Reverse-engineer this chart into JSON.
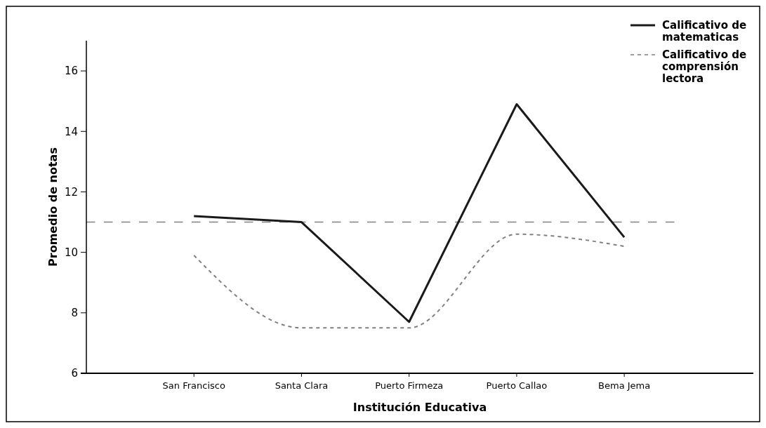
{
  "chart_data": {
    "type": "line",
    "xlabel": "Institución Educativa",
    "ylabel": "Promedio de notas",
    "categories": [
      "San Francisco",
      "Santa Clara",
      "Puerto Firmeza",
      "Puerto Callao",
      "Bema Jema"
    ],
    "series": [
      {
        "name": "Calificativo de matematicas",
        "color": "#1a1a1a",
        "values": [
          11.2,
          11.0,
          7.7,
          14.9,
          10.5
        ],
        "line_style": "solid"
      },
      {
        "name": "Calificativo de comprensión lectora",
        "color": "#808080",
        "values": [
          9.9,
          7.5,
          7.5,
          10.6,
          10.2
        ],
        "line_style": "dashed"
      }
    ],
    "ylim": [
      6,
      17
    ],
    "yticks": [
      6,
      8,
      10,
      12,
      14,
      16
    ],
    "ref_lines": [
      {
        "axis": "y",
        "value": 11,
        "color": "#808080",
        "line_style": "dashed"
      }
    ],
    "legend": "top right",
    "grid": false,
    "marker": "none"
  }
}
